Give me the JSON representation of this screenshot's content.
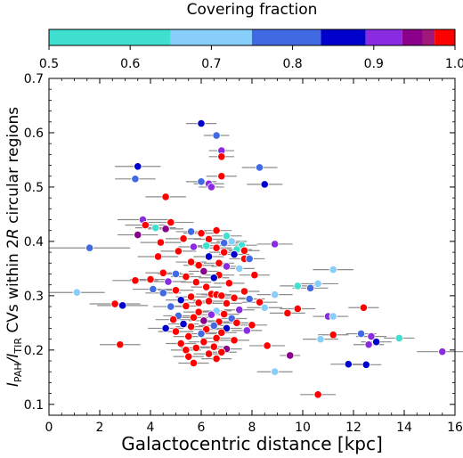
{
  "chart_data": {
    "type": "scatter",
    "xlabel": "Galactocentric distance [kpc]",
    "ylabel": {
      "prefix": "I",
      "sub1": "PAH",
      "mid": "/I",
      "sub2": "TIR",
      "rest_a": " CVs within 2",
      "rest_b": "R",
      "rest_c": " circular regions"
    },
    "xlim": [
      0,
      16
    ],
    "ylim": [
      0.08,
      0.7
    ],
    "xticks": [
      0,
      2,
      4,
      6,
      8,
      10,
      12,
      14,
      16
    ],
    "yticks": [
      0.1,
      0.2,
      0.3,
      0.4,
      0.5,
      0.6,
      0.7
    ],
    "grid": false,
    "colorbar": {
      "label": "Covering fraction",
      "range": [
        0.5,
        1.0
      ],
      "ticks": [
        "0.5",
        "0.6",
        "0.7",
        "0.8",
        "0.9",
        "1.0"
      ],
      "segments": [
        {
          "from": 0.5,
          "to": 0.65,
          "color": "#40e0d0"
        },
        {
          "from": 0.65,
          "to": 0.75,
          "color": "#87cefa"
        },
        {
          "from": 0.75,
          "to": 0.835,
          "color": "#4169e1"
        },
        {
          "from": 0.835,
          "to": 0.89,
          "color": "#0000cd"
        },
        {
          "from": 0.89,
          "to": 0.935,
          "color": "#8a2be2"
        },
        {
          "from": 0.935,
          "to": 0.96,
          "color": "#8b008b"
        },
        {
          "from": 0.96,
          "to": 0.975,
          "color": "#a0187a"
        },
        {
          "from": 0.975,
          "to": 1.0,
          "color": "#ff0000"
        }
      ]
    },
    "points": [
      {
        "x": 6.0,
        "y": 0.617,
        "xerr": 0.6,
        "c": "#0000cd"
      },
      {
        "x": 6.6,
        "y": 0.595,
        "xerr": 0.5,
        "c": "#4169e1"
      },
      {
        "x": 6.8,
        "y": 0.567,
        "xerr": 0.5,
        "c": "#8a2be2"
      },
      {
        "x": 6.8,
        "y": 0.556,
        "xerr": 0.5,
        "c": "#ff0000"
      },
      {
        "x": 3.5,
        "y": 0.538,
        "xerr": 0.9,
        "c": "#0000cd"
      },
      {
        "x": 8.3,
        "y": 0.536,
        "xerr": 0.7,
        "c": "#4169e1"
      },
      {
        "x": 3.4,
        "y": 0.515,
        "xerr": 0.8,
        "c": "#4169e1"
      },
      {
        "x": 6.8,
        "y": 0.52,
        "xerr": 0.6,
        "c": "#ff0000"
      },
      {
        "x": 6.0,
        "y": 0.51,
        "xerr": 0.6,
        "c": "#4169e1"
      },
      {
        "x": 6.3,
        "y": 0.506,
        "xerr": 0.6,
        "c": "#8a2be2"
      },
      {
        "x": 8.5,
        "y": 0.505,
        "xerr": 0.7,
        "c": "#0000cd"
      },
      {
        "x": 6.4,
        "y": 0.5,
        "xerr": 0.5,
        "c": "#8a2be2"
      },
      {
        "x": 4.6,
        "y": 0.482,
        "xerr": 0.8,
        "c": "#ff0000"
      },
      {
        "x": 3.7,
        "y": 0.44,
        "xerr": 1.0,
        "c": "#8a2be2"
      },
      {
        "x": 4.8,
        "y": 0.435,
        "xerr": 0.9,
        "c": "#ff0000"
      },
      {
        "x": 3.8,
        "y": 0.43,
        "xerr": 0.8,
        "c": "#ff0000"
      },
      {
        "x": 4.2,
        "y": 0.425,
        "xerr": 0.8,
        "c": "#40e0d0"
      },
      {
        "x": 4.6,
        "y": 0.423,
        "xerr": 0.7,
        "c": "#8b008b"
      },
      {
        "x": 5.6,
        "y": 0.418,
        "xerr": 0.6,
        "c": "#4169e1"
      },
      {
        "x": 6.0,
        "y": 0.415,
        "xerr": 0.7,
        "c": "#ff0000"
      },
      {
        "x": 6.6,
        "y": 0.42,
        "xerr": 0.6,
        "c": "#ff0000"
      },
      {
        "x": 3.5,
        "y": 0.412,
        "xerr": 0.8,
        "c": "#8b008b"
      },
      {
        "x": 7.0,
        "y": 0.41,
        "xerr": 0.6,
        "c": "#40e0d0"
      },
      {
        "x": 5.3,
        "y": 0.405,
        "xerr": 0.7,
        "c": "#ff0000"
      },
      {
        "x": 6.3,
        "y": 0.404,
        "xerr": 0.6,
        "c": "#ff0000"
      },
      {
        "x": 7.2,
        "y": 0.4,
        "xerr": 0.6,
        "c": "#87cefa"
      },
      {
        "x": 4.4,
        "y": 0.398,
        "xerr": 0.8,
        "c": "#ff0000"
      },
      {
        "x": 6.9,
        "y": 0.397,
        "xerr": 0.6,
        "c": "#4169e1"
      },
      {
        "x": 8.9,
        "y": 0.395,
        "xerr": 0.7,
        "c": "#8a2be2"
      },
      {
        "x": 7.6,
        "y": 0.393,
        "xerr": 0.6,
        "c": "#40e0d0"
      },
      {
        "x": 6.2,
        "y": 0.392,
        "xerr": 0.6,
        "c": "#40e0d0"
      },
      {
        "x": 5.7,
        "y": 0.39,
        "xerr": 0.6,
        "c": "#8a2be2"
      },
      {
        "x": 6.6,
        "y": 0.388,
        "xerr": 0.6,
        "c": "#ff0000"
      },
      {
        "x": 1.6,
        "y": 0.388,
        "xerr": 1.6,
        "c": "#4169e1"
      },
      {
        "x": 7.4,
        "y": 0.385,
        "xerr": 0.6,
        "c": "#40e0d0"
      },
      {
        "x": 7.7,
        "y": 0.383,
        "xerr": 0.6,
        "c": "#ff0000"
      },
      {
        "x": 5.1,
        "y": 0.382,
        "xerr": 0.7,
        "c": "#ff0000"
      },
      {
        "x": 6.9,
        "y": 0.38,
        "xerr": 0.6,
        "c": "#ff0000"
      },
      {
        "x": 7.3,
        "y": 0.376,
        "xerr": 0.6,
        "c": "#0000cd"
      },
      {
        "x": 6.3,
        "y": 0.372,
        "xerr": 0.6,
        "c": "#0000cd"
      },
      {
        "x": 4.3,
        "y": 0.372,
        "xerr": 0.8,
        "c": "#ff0000"
      },
      {
        "x": 7.7,
        "y": 0.368,
        "xerr": 0.6,
        "c": "#ff0000"
      },
      {
        "x": 7.9,
        "y": 0.368,
        "xerr": 0.6,
        "c": "#4169e1"
      },
      {
        "x": 5.6,
        "y": 0.362,
        "xerr": 0.6,
        "c": "#ff0000"
      },
      {
        "x": 6.7,
        "y": 0.36,
        "xerr": 0.6,
        "c": "#ff0000"
      },
      {
        "x": 5.9,
        "y": 0.356,
        "xerr": 0.6,
        "c": "#ff0000"
      },
      {
        "x": 7.0,
        "y": 0.354,
        "xerr": 0.6,
        "c": "#8a2be2"
      },
      {
        "x": 7.5,
        "y": 0.35,
        "xerr": 0.6,
        "c": "#87cefa"
      },
      {
        "x": 11.2,
        "y": 0.348,
        "xerr": 0.8,
        "c": "#87cefa"
      },
      {
        "x": 6.1,
        "y": 0.345,
        "xerr": 0.6,
        "c": "#8b008b"
      },
      {
        "x": 4.5,
        "y": 0.342,
        "xerr": 0.7,
        "c": "#ff0000"
      },
      {
        "x": 5.0,
        "y": 0.34,
        "xerr": 0.7,
        "c": "#4169e1"
      },
      {
        "x": 6.7,
        "y": 0.338,
        "xerr": 0.6,
        "c": "#ff0000"
      },
      {
        "x": 8.1,
        "y": 0.338,
        "xerr": 0.6,
        "c": "#ff0000"
      },
      {
        "x": 5.4,
        "y": 0.335,
        "xerr": 0.6,
        "c": "#ff0000"
      },
      {
        "x": 6.5,
        "y": 0.333,
        "xerr": 0.6,
        "c": "#0000cd"
      },
      {
        "x": 4.0,
        "y": 0.33,
        "xerr": 0.8,
        "c": "#ff0000"
      },
      {
        "x": 3.4,
        "y": 0.328,
        "xerr": 0.9,
        "c": "#ff0000"
      },
      {
        "x": 4.7,
        "y": 0.326,
        "xerr": 0.7,
        "c": "#8a2be2"
      },
      {
        "x": 5.8,
        "y": 0.325,
        "xerr": 0.6,
        "c": "#ff0000"
      },
      {
        "x": 7.1,
        "y": 0.323,
        "xerr": 0.6,
        "c": "#ff0000"
      },
      {
        "x": 10.6,
        "y": 0.322,
        "xerr": 0.8,
        "c": "#87cefa"
      },
      {
        "x": 9.8,
        "y": 0.318,
        "xerr": 0.7,
        "c": "#40e0d0"
      },
      {
        "x": 6.2,
        "y": 0.316,
        "xerr": 0.6,
        "c": "#ff0000"
      },
      {
        "x": 10.3,
        "y": 0.314,
        "xerr": 0.7,
        "c": "#4169e1"
      },
      {
        "x": 4.1,
        "y": 0.312,
        "xerr": 0.8,
        "c": "#4169e1"
      },
      {
        "x": 5.0,
        "y": 0.31,
        "xerr": 0.7,
        "c": "#ff0000"
      },
      {
        "x": 7.7,
        "y": 0.308,
        "xerr": 0.6,
        "c": "#ff0000"
      },
      {
        "x": 1.1,
        "y": 0.306,
        "xerr": 1.1,
        "c": "#87cefa"
      },
      {
        "x": 4.5,
        "y": 0.305,
        "xerr": 0.7,
        "c": "#4169e1"
      },
      {
        "x": 6.4,
        "y": 0.303,
        "xerr": 0.6,
        "c": "#ff0000"
      },
      {
        "x": 6.6,
        "y": 0.302,
        "xerr": 0.6,
        "c": "#ff0000"
      },
      {
        "x": 8.9,
        "y": 0.302,
        "xerr": 0.7,
        "c": "#87cefa"
      },
      {
        "x": 6.8,
        "y": 0.3,
        "xerr": 0.6,
        "c": "#ff0000"
      },
      {
        "x": 5.6,
        "y": 0.298,
        "xerr": 0.6,
        "c": "#ff0000"
      },
      {
        "x": 7.3,
        "y": 0.296,
        "xerr": 0.6,
        "c": "#ff0000"
      },
      {
        "x": 7.9,
        "y": 0.294,
        "xerr": 0.6,
        "c": "#4169e1"
      },
      {
        "x": 5.2,
        "y": 0.292,
        "xerr": 0.6,
        "c": "#0000cd"
      },
      {
        "x": 6.3,
        "y": 0.29,
        "xerr": 0.6,
        "c": "#ff0000"
      },
      {
        "x": 8.3,
        "y": 0.288,
        "xerr": 0.7,
        "c": "#ff0000"
      },
      {
        "x": 5.9,
        "y": 0.287,
        "xerr": 0.6,
        "c": "#ff0000"
      },
      {
        "x": 7.0,
        "y": 0.286,
        "xerr": 0.6,
        "c": "#ff0000"
      },
      {
        "x": 2.6,
        "y": 0.285,
        "xerr": 1.0,
        "c": "#ff0000"
      },
      {
        "x": 2.9,
        "y": 0.282,
        "xerr": 1.0,
        "c": "#0000cd"
      },
      {
        "x": 5.4,
        "y": 0.281,
        "xerr": 0.6,
        "c": "#ff0000"
      },
      {
        "x": 4.8,
        "y": 0.28,
        "xerr": 0.7,
        "c": "#4169e1"
      },
      {
        "x": 8.5,
        "y": 0.278,
        "xerr": 0.7,
        "c": "#87cefa"
      },
      {
        "x": 12.4,
        "y": 0.278,
        "xerr": 0.6,
        "c": "#ff0000"
      },
      {
        "x": 9.8,
        "y": 0.276,
        "xerr": 0.7,
        "c": "#ff0000"
      },
      {
        "x": 7.5,
        "y": 0.274,
        "xerr": 0.6,
        "c": "#8a2be2"
      },
      {
        "x": 6.6,
        "y": 0.272,
        "xerr": 0.6,
        "c": "#87cefa"
      },
      {
        "x": 5.9,
        "y": 0.27,
        "xerr": 0.6,
        "c": "#ff0000"
      },
      {
        "x": 9.4,
        "y": 0.268,
        "xerr": 0.7,
        "c": "#ff0000"
      },
      {
        "x": 6.9,
        "y": 0.266,
        "xerr": 0.6,
        "c": "#ff0000"
      },
      {
        "x": 6.4,
        "y": 0.265,
        "xerr": 0.6,
        "c": "#8a2be2"
      },
      {
        "x": 5.1,
        "y": 0.263,
        "xerr": 0.6,
        "c": "#4169e1"
      },
      {
        "x": 11.0,
        "y": 0.262,
        "xerr": 0.6,
        "c": "#8a2be2"
      },
      {
        "x": 11.2,
        "y": 0.262,
        "xerr": 0.6,
        "c": "#87cefa"
      },
      {
        "x": 5.7,
        "y": 0.26,
        "xerr": 0.6,
        "c": "#ff0000"
      },
      {
        "x": 7.2,
        "y": 0.258,
        "xerr": 0.6,
        "c": "#4169e1"
      },
      {
        "x": 4.9,
        "y": 0.256,
        "xerr": 0.7,
        "c": "#ff0000"
      },
      {
        "x": 6.1,
        "y": 0.254,
        "xerr": 0.6,
        "c": "#8b008b"
      },
      {
        "x": 6.7,
        "y": 0.252,
        "xerr": 0.6,
        "c": "#ff0000"
      },
      {
        "x": 7.4,
        "y": 0.25,
        "xerr": 0.6,
        "c": "#ff0000"
      },
      {
        "x": 5.3,
        "y": 0.248,
        "xerr": 0.6,
        "c": "#0000cd"
      },
      {
        "x": 8.0,
        "y": 0.246,
        "xerr": 0.6,
        "c": "#ff0000"
      },
      {
        "x": 6.5,
        "y": 0.245,
        "xerr": 0.6,
        "c": "#4169e1"
      },
      {
        "x": 5.6,
        "y": 0.243,
        "xerr": 0.6,
        "c": "#ff0000"
      },
      {
        "x": 7.0,
        "y": 0.24,
        "xerr": 0.6,
        "c": "#0000cd"
      },
      {
        "x": 4.6,
        "y": 0.24,
        "xerr": 0.7,
        "c": "#0000cd"
      },
      {
        "x": 6.2,
        "y": 0.238,
        "xerr": 0.6,
        "c": "#ff0000"
      },
      {
        "x": 7.8,
        "y": 0.236,
        "xerr": 0.6,
        "c": "#8a2be2"
      },
      {
        "x": 5.0,
        "y": 0.234,
        "xerr": 0.7,
        "c": "#ff0000"
      },
      {
        "x": 6.8,
        "y": 0.232,
        "xerr": 0.6,
        "c": "#ff0000"
      },
      {
        "x": 6.0,
        "y": 0.23,
        "xerr": 0.6,
        "c": "#4169e1"
      },
      {
        "x": 12.3,
        "y": 0.23,
        "xerr": 0.6,
        "c": "#4169e1"
      },
      {
        "x": 11.2,
        "y": 0.228,
        "xerr": 0.6,
        "c": "#ff0000"
      },
      {
        "x": 12.7,
        "y": 0.225,
        "xerr": 0.6,
        "c": "#8a2be2"
      },
      {
        "x": 5.5,
        "y": 0.225,
        "xerr": 0.6,
        "c": "#ff0000"
      },
      {
        "x": 6.6,
        "y": 0.222,
        "xerr": 0.6,
        "c": "#ff0000"
      },
      {
        "x": 13.8,
        "y": 0.222,
        "xerr": 0.6,
        "c": "#40e0d0"
      },
      {
        "x": 10.7,
        "y": 0.22,
        "xerr": 0.7,
        "c": "#87cefa"
      },
      {
        "x": 7.3,
        "y": 0.218,
        "xerr": 0.6,
        "c": "#ff0000"
      },
      {
        "x": 12.9,
        "y": 0.215,
        "xerr": 0.6,
        "c": "#0000cd"
      },
      {
        "x": 6.1,
        "y": 0.215,
        "xerr": 0.6,
        "c": "#ff0000"
      },
      {
        "x": 5.2,
        "y": 0.212,
        "xerr": 0.6,
        "c": "#ff0000"
      },
      {
        "x": 2.8,
        "y": 0.21,
        "xerr": 0.8,
        "c": "#ff0000"
      },
      {
        "x": 12.6,
        "y": 0.21,
        "xerr": 0.6,
        "c": "#8a2be2"
      },
      {
        "x": 8.6,
        "y": 0.208,
        "xerr": 0.7,
        "c": "#ff0000"
      },
      {
        "x": 6.5,
        "y": 0.206,
        "xerr": 0.6,
        "c": "#ff0000"
      },
      {
        "x": 5.8,
        "y": 0.204,
        "xerr": 0.6,
        "c": "#ff0000"
      },
      {
        "x": 7.0,
        "y": 0.202,
        "xerr": 0.6,
        "c": "#8b008b"
      },
      {
        "x": 5.4,
        "y": 0.2,
        "xerr": 0.6,
        "c": "#ff0000"
      },
      {
        "x": 15.5,
        "y": 0.197,
        "xerr": 1.0,
        "c": "#8a2be2"
      },
      {
        "x": 6.8,
        "y": 0.196,
        "xerr": 0.6,
        "c": "#ff0000"
      },
      {
        "x": 6.3,
        "y": 0.193,
        "xerr": 0.6,
        "c": "#ff0000"
      },
      {
        "x": 9.5,
        "y": 0.19,
        "xerr": 0.4,
        "c": "#8b008b"
      },
      {
        "x": 5.5,
        "y": 0.188,
        "xerr": 0.6,
        "c": "#ff0000"
      },
      {
        "x": 6.6,
        "y": 0.184,
        "xerr": 0.6,
        "c": "#ff0000"
      },
      {
        "x": 5.7,
        "y": 0.176,
        "xerr": 0.6,
        "c": "#ff0000"
      },
      {
        "x": 11.8,
        "y": 0.174,
        "xerr": 0.7,
        "c": "#0000cd"
      },
      {
        "x": 12.5,
        "y": 0.173,
        "xerr": 0.6,
        "c": "#0000cd"
      },
      {
        "x": 8.9,
        "y": 0.16,
        "xerr": 0.7,
        "c": "#87cefa"
      },
      {
        "x": 10.6,
        "y": 0.118,
        "xerr": 0.7,
        "c": "#ff0000"
      }
    ]
  }
}
